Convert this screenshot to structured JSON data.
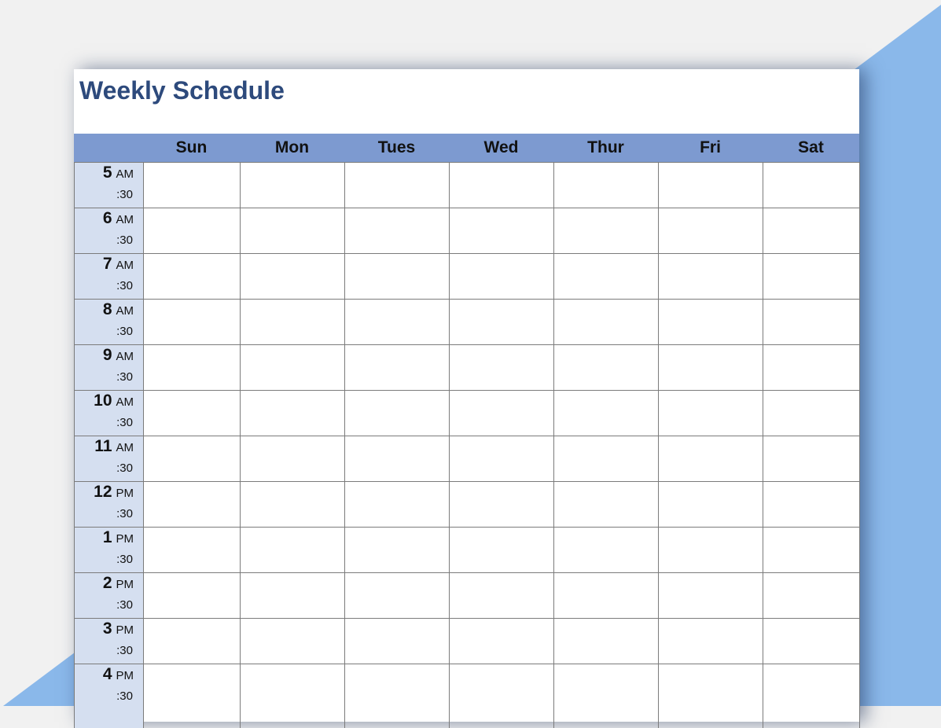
{
  "title": "Weekly Schedule",
  "days": [
    "Sun",
    "Mon",
    "Tues",
    "Wed",
    "Thur",
    "Fri",
    "Sat"
  ],
  "times": [
    {
      "hour": "5",
      "period": "AM",
      "half": ":30"
    },
    {
      "hour": "6",
      "period": "AM",
      "half": ":30"
    },
    {
      "hour": "7",
      "period": "AM",
      "half": ":30"
    },
    {
      "hour": "8",
      "period": "AM",
      "half": ":30"
    },
    {
      "hour": "9",
      "period": "AM",
      "half": ":30"
    },
    {
      "hour": "10",
      "period": "AM",
      "half": ":30"
    },
    {
      "hour": "11",
      "period": "AM",
      "half": ":30"
    },
    {
      "hour": "12",
      "period": "PM",
      "half": ":30"
    },
    {
      "hour": "1",
      "period": "PM",
      "half": ":30"
    },
    {
      "hour": "2",
      "period": "PM",
      "half": ":30"
    },
    {
      "hour": "3",
      "period": "PM",
      "half": ":30"
    },
    {
      "hour": "4",
      "period": "PM",
      "half": ":30"
    }
  ],
  "colors": {
    "accent": "#7d9ad0",
    "time_column": "#d5dff0",
    "title": "#2d4a7c",
    "background_triangle": "#8ab8ea"
  }
}
